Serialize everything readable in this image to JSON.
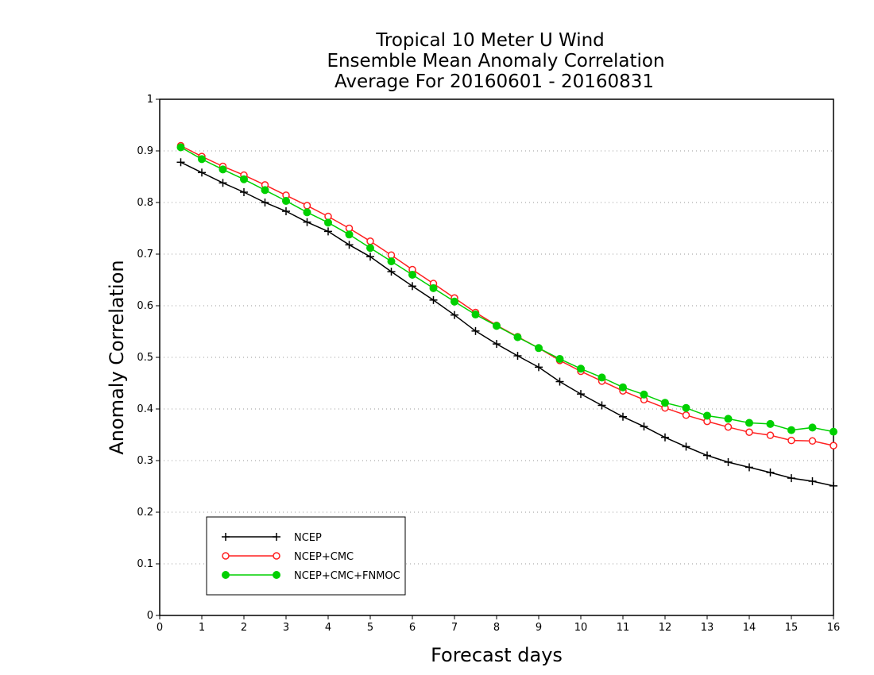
{
  "chart_data": {
    "type": "line",
    "title": [
      "Tropical 10 Meter U Wind",
      "Ensemble Mean Anomaly Correlation",
      "Average For 20160601 - 20160831"
    ],
    "xlabel": "Forecast days",
    "ylabel": "Anomaly Correlation",
    "xlim": [
      0,
      16
    ],
    "ylim": [
      0,
      1
    ],
    "x_ticks": [
      "0",
      "1",
      "2",
      "3",
      "4",
      "5",
      "6",
      "7",
      "8",
      "9",
      "10",
      "11",
      "12",
      "13",
      "14",
      "15",
      "16"
    ],
    "y_ticks": [
      "0",
      "0.1",
      "0.2",
      "0.3",
      "0.4",
      "0.5",
      "0.6",
      "0.7",
      "0.8",
      "0.9",
      "1"
    ],
    "grid": "horizontal dotted",
    "legend_position": "lower-left",
    "x": [
      0.5,
      1,
      1.5,
      2,
      2.5,
      3,
      3.5,
      4,
      4.5,
      5,
      5.5,
      6,
      6.5,
      7,
      7.5,
      8,
      8.5,
      9,
      9.5,
      10,
      10.5,
      11,
      11.5,
      12,
      12.5,
      13,
      13.5,
      14,
      14.5,
      15,
      15.5,
      16
    ],
    "series": [
      {
        "name": "NCEP",
        "color": "#000000",
        "marker": "plus",
        "values": [
          0.878,
          0.858,
          0.838,
          0.82,
          0.8,
          0.783,
          0.762,
          0.744,
          0.718,
          0.695,
          0.666,
          0.638,
          0.611,
          0.582,
          0.551,
          0.526,
          0.503,
          0.481,
          0.453,
          0.429,
          0.407,
          0.385,
          0.366,
          0.345,
          0.327,
          0.31,
          0.297,
          0.287,
          0.277,
          0.266,
          0.26,
          0.251
        ]
      },
      {
        "name": "NCEP+CMC",
        "color": "#ff2020",
        "marker": "open-circle",
        "values": [
          0.91,
          0.889,
          0.87,
          0.853,
          0.834,
          0.814,
          0.794,
          0.773,
          0.75,
          0.725,
          0.698,
          0.67,
          0.643,
          0.615,
          0.587,
          0.562,
          0.54,
          0.518,
          0.494,
          0.473,
          0.454,
          0.435,
          0.418,
          0.402,
          0.388,
          0.376,
          0.365,
          0.355,
          0.349,
          0.339,
          0.338,
          0.329
        ]
      },
      {
        "name": "NCEP+CMC+FNMOC",
        "color": "#00d000",
        "marker": "filled-circle",
        "values": [
          0.907,
          0.884,
          0.864,
          0.845,
          0.824,
          0.803,
          0.781,
          0.761,
          0.738,
          0.712,
          0.686,
          0.66,
          0.634,
          0.608,
          0.583,
          0.561,
          0.539,
          0.518,
          0.497,
          0.478,
          0.461,
          0.442,
          0.428,
          0.412,
          0.402,
          0.387,
          0.381,
          0.373,
          0.371,
          0.359,
          0.364,
          0.356
        ]
      }
    ]
  }
}
